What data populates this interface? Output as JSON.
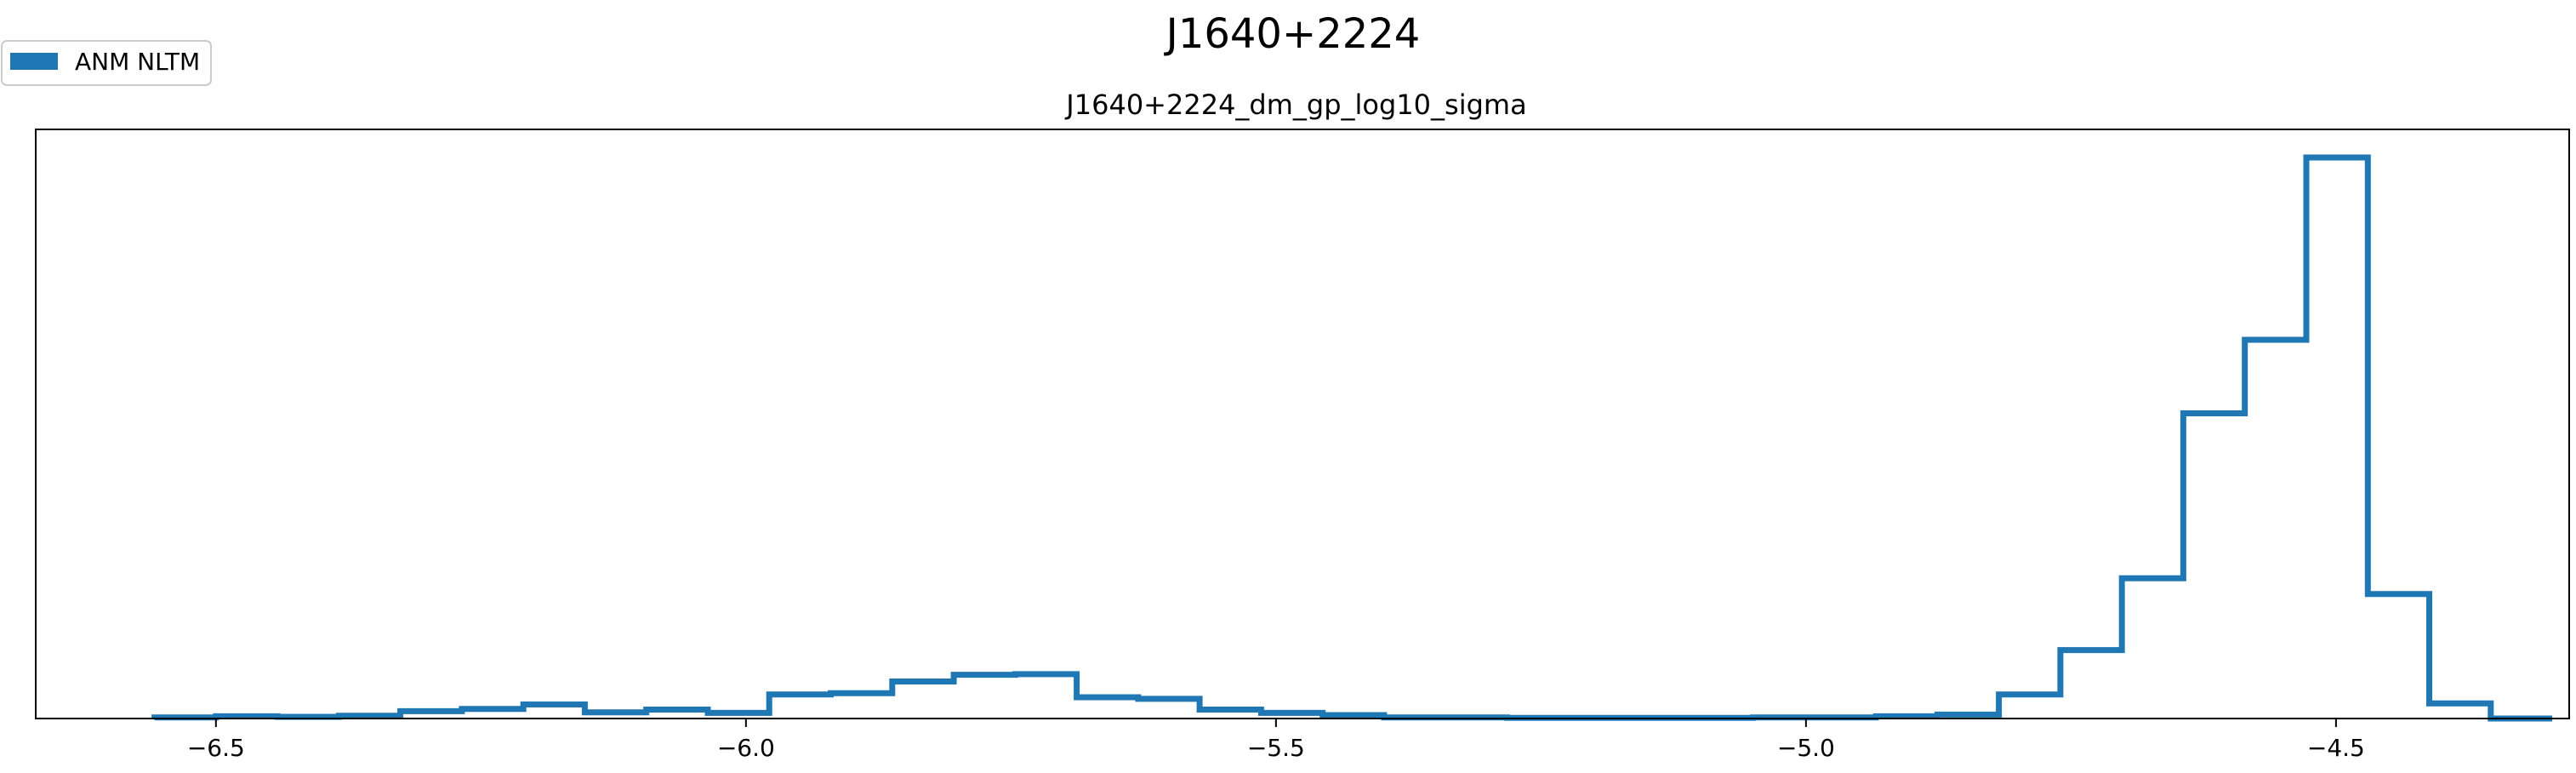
{
  "chart_data": {
    "type": "histogram",
    "suptitle": "J1640+2224",
    "title": "J1640+2224_dm_gp_log10_sigma",
    "xlabel": "",
    "ylabel": "",
    "xlim": [
      -6.67,
      -4.28
    ],
    "ylim": [
      0,
      1.05
    ],
    "x_ticks": [
      -6.5,
      -6.0,
      -5.5,
      -5.0,
      -4.5
    ],
    "x_tick_labels": [
      "−6.5",
      "−6.0",
      "−5.5",
      "−5.0",
      "−4.5"
    ],
    "y_ticks_visible": false,
    "grid": false,
    "legend": {
      "location": "top-left",
      "entries": [
        {
          "label": "ANM NLTM",
          "color": "#1f77b4"
        }
      ]
    },
    "series": [
      {
        "name": "ANM NLTM",
        "color": "#1f77b4",
        "style": "step",
        "bin_edges": [
          -6.558,
          -6.5,
          -6.442,
          -6.384,
          -6.326,
          -6.268,
          -6.21,
          -6.152,
          -6.094,
          -6.036,
          -5.978,
          -5.92,
          -5.862,
          -5.804,
          -5.746,
          -5.688,
          -5.63,
          -5.572,
          -5.514,
          -5.456,
          -5.398,
          -5.34,
          -5.282,
          -5.224,
          -5.166,
          -5.108,
          -5.05,
          -4.992,
          -4.934,
          -4.876,
          -4.818,
          -4.76,
          -4.702,
          -4.644,
          -4.586,
          -4.528,
          -4.47,
          -4.412,
          -4.354,
          -4.296
        ],
        "counts": [
          0.002,
          0.004,
          0.003,
          0.005,
          0.013,
          0.017,
          0.025,
          0.011,
          0.016,
          0.01,
          0.043,
          0.045,
          0.066,
          0.078,
          0.079,
          0.038,
          0.035,
          0.016,
          0.01,
          0.006,
          0.002,
          0.002,
          0.001,
          0.001,
          0.001,
          0.001,
          0.002,
          0.002,
          0.004,
          0.007,
          0.043,
          0.122,
          0.25,
          0.544,
          0.675,
          1.0,
          0.222,
          0.027,
          0.0
        ]
      }
    ]
  }
}
